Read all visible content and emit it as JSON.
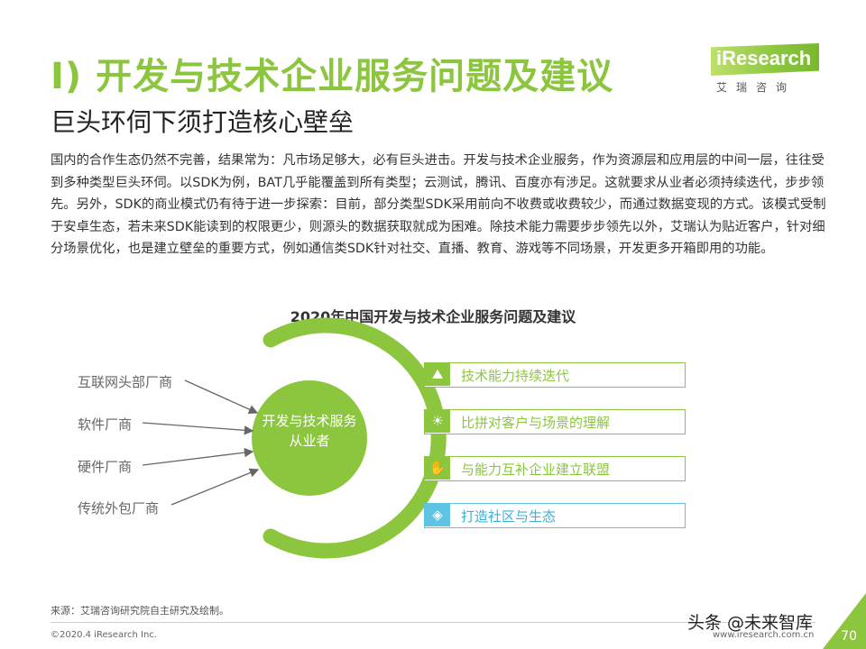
{
  "header": {
    "title": "I) 开发与技术企业服务问题及建议",
    "subtitle": "巨头环伺下须打造核心壁垒"
  },
  "logo": {
    "name": "iResearch",
    "chinese": "艾瑞咨询"
  },
  "body": {
    "paragraph": "国内的合作生态仍然不完善，结果常为：凡市场足够大，必有巨头进击。开发与技术企业服务，作为资源层和应用层的中间一层，往往受到多种类型巨头环伺。以SDK为例，BAT几乎能覆盖到所有类型；云测试，腾讯、百度亦有涉足。这就要求从业者必须持续迭代，步步领先。另外，SDK的商业模式仍有待于进一步探索：目前，部分类型SDK采用前向不收费或收费较少，而通过数据变现的方式。该模式受制于安卓生态，若未来SDK能读到的权限更少，则源头的数据获取就成为困难。除技术能力需要步步领先以外，艾瑞认为贴近客户，针对细分场景优化，也是建立壁垒的重要方式，例如通信类SDK针对社交、直播、教育、游戏等不同场景，开发更多开箱即用的功能。"
  },
  "diagram": {
    "title": "2020年中国开发与技术企业服务问题及建议",
    "threats": [
      "互联网头部厂商",
      "软件厂商",
      "硬件厂商",
      "传统外包厂商"
    ],
    "center_label": "开发与技术服务从业者",
    "suggestions": [
      {
        "label": "技术能力持续迭代",
        "icon": "person-climb-icon"
      },
      {
        "label": "比拼对客户与场景的理解",
        "icon": "lightbulb-icon"
      },
      {
        "label": "与能力互补企业建立联盟",
        "icon": "handshake-icon"
      },
      {
        "label": "打造社区与生态",
        "icon": "puzzle-icon"
      }
    ],
    "colors": {
      "green": "#8cc63f",
      "blue": "#5fc3e4"
    }
  },
  "footer": {
    "source": "来源：艾瑞咨询研究院自主研究及绘制。",
    "copyright": "©2020.4 iResearch Inc.",
    "website": "www.iresearch.com.cn",
    "page_number": "70",
    "watermark": "头条 @未来智库"
  }
}
